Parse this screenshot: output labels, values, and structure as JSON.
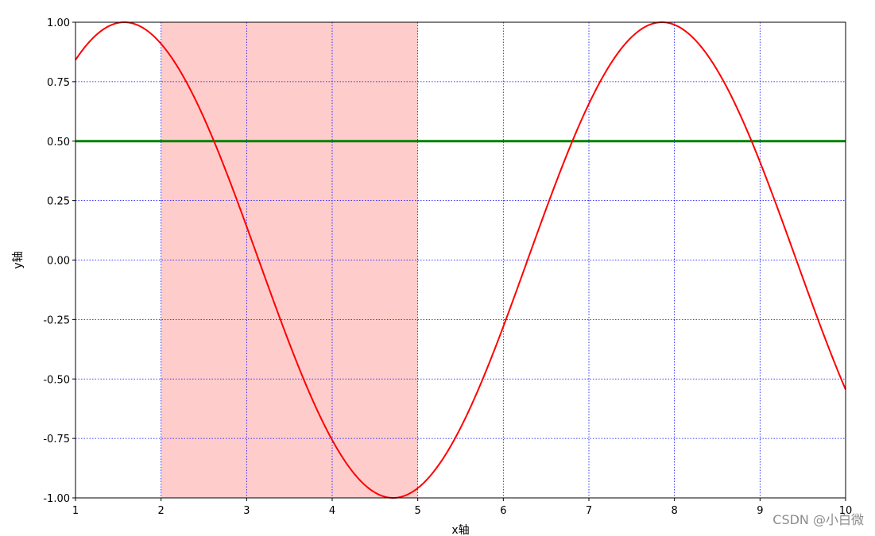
{
  "chart_data": {
    "type": "line",
    "xlabel": "x轴",
    "ylabel": "y轴",
    "xlim": [
      1,
      10
    ],
    "ylim": [
      -1.0,
      1.0
    ],
    "xticks": [
      1,
      2,
      3,
      4,
      5,
      6,
      7,
      8,
      9,
      10
    ],
    "xtick_labels": [
      "1",
      "2",
      "3",
      "4",
      "5",
      "6",
      "7",
      "8",
      "9",
      "10"
    ],
    "yticks": [
      1.0,
      0.75,
      0.5,
      0.25,
      0.0,
      -0.25,
      -0.5,
      -0.75,
      -1.0
    ],
    "ytick_labels": [
      "1.00",
      "0.75",
      "0.50",
      "0.25",
      "0.00",
      "-0.25",
      "-0.50",
      "-0.75",
      "-1.00"
    ],
    "grid": true,
    "grid_style": "dotted",
    "grid_color": "#0000ff",
    "series": [
      {
        "color": "#ff0000",
        "function": "sin(x)",
        "x": [
          1.0,
          1.25,
          1.5,
          1.57,
          1.75,
          2.0,
          2.25,
          2.5,
          2.75,
          3.0,
          3.25,
          3.5,
          3.75,
          4.0,
          4.25,
          4.5,
          4.71,
          5.0,
          5.25,
          5.5,
          5.75,
          6.0,
          6.25,
          6.5,
          6.75,
          7.0,
          7.25,
          7.5,
          7.85,
          8.0,
          8.25,
          8.5,
          8.75,
          9.0,
          9.25,
          9.5,
          9.75,
          10.0
        ],
        "y": [
          0.84,
          0.95,
          1.0,
          1.0,
          0.98,
          0.91,
          0.78,
          0.6,
          0.38,
          0.14,
          -0.11,
          -0.35,
          -0.57,
          -0.76,
          -0.89,
          -0.98,
          -1.0,
          -0.96,
          -0.86,
          -0.71,
          -0.51,
          -0.28,
          -0.03,
          0.22,
          0.45,
          0.66,
          0.82,
          0.94,
          1.0,
          0.99,
          0.92,
          0.8,
          0.62,
          0.41,
          0.17,
          -0.08,
          -0.32,
          -0.54
        ]
      }
    ],
    "hlines": [
      {
        "y": 0.5,
        "color": "#008000"
      }
    ],
    "spans": [
      {
        "x_start": 2,
        "x_end": 5,
        "color": "#ffcccc"
      }
    ]
  },
  "watermark": "CSDN @小白微"
}
